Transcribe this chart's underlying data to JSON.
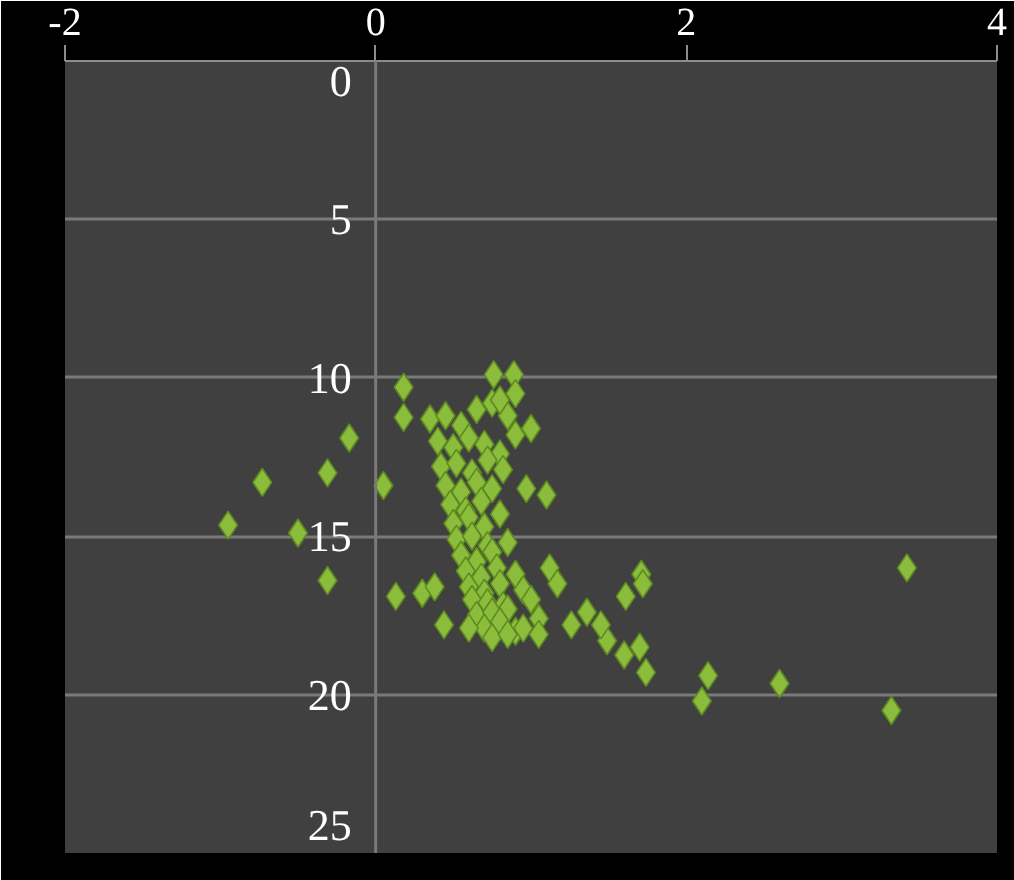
{
  "chart_data": {
    "type": "scatter",
    "marker": "diamond",
    "grid": "y",
    "xlim": [
      -2,
      4
    ],
    "xticks": [
      -2,
      0,
      2,
      4
    ],
    "ylim": [
      25,
      0
    ],
    "yticks": [
      0,
      5,
      10,
      15,
      20,
      25
    ],
    "series": [
      {
        "color": "#8cbc3c",
        "x": [
          -0.95,
          -0.73,
          -0.17,
          -0.31,
          0.05,
          -0.5,
          -0.31,
          0.13,
          0.18,
          0.18,
          0.76,
          0.89,
          0.97,
          1.1,
          0.44,
          3.42,
          3.32,
          2.6,
          2.14,
          2.1,
          1.74,
          1.7,
          1.6,
          1.71,
          1.72,
          1.61,
          1.49,
          1.45,
          1.36,
          1.26,
          1.12,
          1.17,
          0.35,
          0.45,
          0.55,
          0.65,
          0.75,
          0.85,
          0.4,
          0.5,
          0.6,
          0.7,
          0.8,
          0.9,
          0.42,
          0.52,
          0.62,
          0.72,
          0.82,
          0.45,
          0.55,
          0.65,
          0.75,
          0.48,
          0.58,
          0.68,
          0.5,
          0.6,
          0.7,
          0.8,
          0.52,
          0.62,
          0.72,
          0.55,
          0.65,
          0.75,
          0.85,
          0.58,
          0.68,
          0.78,
          0.6,
          0.7,
          0.8,
          0.9,
          0.62,
          0.72,
          0.82,
          0.95,
          0.65,
          0.75,
          0.85,
          1.0,
          0.7,
          0.8,
          0.9,
          1.05,
          0.75,
          0.85,
          0.95,
          0.8,
          0.9,
          1.0,
          0.3,
          0.38,
          0.6,
          1.05
        ],
        "values": [
          14.65,
          13.3,
          11.9,
          13.0,
          13.4,
          14.9,
          16.4,
          16.9,
          10.3,
          11.25,
          9.9,
          9.9,
          13.5,
          13.7,
          17.8,
          16.0,
          20.5,
          19.65,
          19.4,
          20.2,
          19.3,
          18.5,
          18.75,
          16.2,
          16.5,
          16.9,
          18.3,
          17.8,
          17.4,
          17.8,
          16.0,
          16.5,
          11.3,
          11.2,
          11.5,
          11.0,
          10.8,
          11.2,
          12.0,
          12.2,
          11.9,
          12.1,
          12.4,
          11.8,
          12.8,
          12.7,
          13.0,
          12.6,
          12.9,
          13.4,
          13.6,
          13.3,
          13.5,
          14.0,
          14.2,
          13.9,
          14.6,
          14.4,
          14.7,
          14.3,
          15.1,
          15.0,
          15.3,
          15.6,
          15.8,
          15.5,
          15.2,
          16.1,
          16.3,
          16.0,
          16.6,
          16.8,
          16.5,
          16.2,
          17.0,
          17.1,
          17.2,
          16.7,
          17.5,
          17.4,
          17.3,
          17.0,
          17.9,
          17.7,
          18.0,
          17.6,
          18.2,
          18.1,
          17.9,
          10.7,
          10.5,
          11.6,
          16.8,
          16.6,
          17.9,
          18.1
        ]
      }
    ]
  }
}
